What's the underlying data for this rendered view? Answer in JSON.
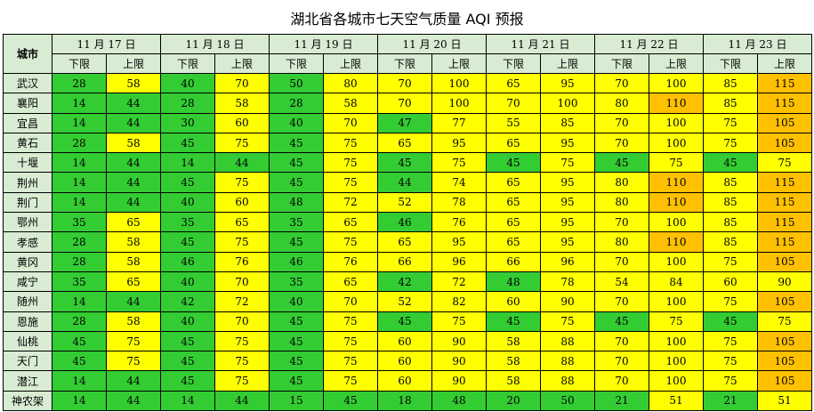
{
  "title": "湖北省各城市七天空气质量 AQI 预报",
  "header": {
    "city_label": "城市",
    "lower_label": "下限",
    "upper_label": "上限",
    "dates": [
      "11 月 17 日",
      "11 月 18 日",
      "11 月 19 日",
      "11 月 20 日",
      "11 月 21 日",
      "11 月 22 日",
      "11 月 23 日"
    ]
  },
  "colors": {
    "green": "#33cc33",
    "yellow": "#ffff00",
    "orange": "#ffc000",
    "header_bg": "#d7ecd2"
  },
  "rows": [
    {
      "city": "武汉",
      "values": [
        28,
        58,
        40,
        70,
        50,
        80,
        70,
        100,
        65,
        95,
        70,
        100,
        85,
        115
      ]
    },
    {
      "city": "襄阳",
      "values": [
        14,
        44,
        28,
        58,
        28,
        58,
        70,
        100,
        70,
        100,
        80,
        110,
        85,
        115
      ]
    },
    {
      "city": "宜昌",
      "values": [
        14,
        44,
        30,
        60,
        40,
        70,
        47,
        77,
        55,
        85,
        70,
        100,
        75,
        105
      ]
    },
    {
      "city": "黄石",
      "values": [
        28,
        58,
        45,
        75,
        45,
        75,
        65,
        95,
        65,
        95,
        70,
        100,
        75,
        105
      ]
    },
    {
      "city": "十堰",
      "values": [
        14,
        44,
        14,
        44,
        45,
        75,
        45,
        75,
        45,
        75,
        45,
        75,
        45,
        75
      ]
    },
    {
      "city": "荆州",
      "values": [
        14,
        44,
        45,
        75,
        45,
        75,
        44,
        74,
        65,
        95,
        80,
        110,
        85,
        115
      ]
    },
    {
      "city": "荆门",
      "values": [
        14,
        44,
        40,
        60,
        48,
        72,
        52,
        78,
        65,
        95,
        80,
        110,
        85,
        115
      ]
    },
    {
      "city": "鄂州",
      "values": [
        35,
        65,
        35,
        65,
        35,
        65,
        46,
        76,
        65,
        95,
        70,
        100,
        85,
        115
      ]
    },
    {
      "city": "孝感",
      "values": [
        28,
        58,
        45,
        75,
        45,
        75,
        65,
        95,
        65,
        95,
        80,
        110,
        85,
        115
      ]
    },
    {
      "city": "黄冈",
      "values": [
        28,
        58,
        46,
        76,
        46,
        76,
        66,
        96,
        66,
        96,
        70,
        100,
        75,
        105
      ]
    },
    {
      "city": "咸宁",
      "values": [
        35,
        65,
        40,
        70,
        35,
        65,
        42,
        72,
        48,
        78,
        54,
        84,
        60,
        90
      ]
    },
    {
      "city": "随州",
      "values": [
        14,
        44,
        42,
        72,
        40,
        70,
        52,
        82,
        60,
        90,
        70,
        100,
        75,
        105
      ]
    },
    {
      "city": "恩施",
      "values": [
        28,
        58,
        40,
        70,
        45,
        75,
        45,
        75,
        45,
        75,
        45,
        75,
        45,
        75
      ]
    },
    {
      "city": "仙桃",
      "values": [
        45,
        75,
        45,
        75,
        45,
        75,
        60,
        90,
        58,
        88,
        70,
        100,
        75,
        105
      ]
    },
    {
      "city": "天门",
      "values": [
        45,
        75,
        45,
        75,
        45,
        75,
        60,
        90,
        58,
        88,
        70,
        100,
        75,
        105
      ]
    },
    {
      "city": "潜江",
      "values": [
        14,
        44,
        45,
        75,
        45,
        75,
        60,
        90,
        58,
        88,
        70,
        100,
        75,
        105
      ]
    },
    {
      "city": "神农架",
      "values": [
        14,
        44,
        14,
        44,
        15,
        45,
        18,
        48,
        20,
        50,
        21,
        51,
        21,
        51
      ]
    }
  ]
}
